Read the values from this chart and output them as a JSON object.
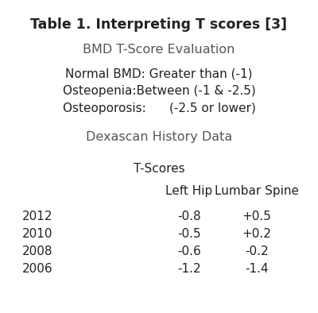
{
  "title": "Table 1. Interpreting T scores [3]",
  "bg_color": "#ffffff",
  "section1_header": "BMD T-Score Evaluation",
  "section1_lines": [
    "Normal BMD: Greater than (-1)",
    "Osteopenia:Between (-1 & -2.5)",
    "Osteoporosis:      (-2.5 or lower)"
  ],
  "section2_header": "Dexascan History Data",
  "tscores_label": "T-Scores",
  "col_headers": [
    "Left Hip",
    "Lumbar Spine"
  ],
  "years": [
    "2012",
    "2010",
    "2008",
    "2006"
  ],
  "left_hip": [
    "-0.8",
    "-0.5",
    "-0.6",
    "-1.2"
  ],
  "lumbar_spine": [
    "+0.5",
    "+0.2",
    "-0.2",
    "-1.4"
  ],
  "title_fontsize": 12.5,
  "header_fontsize": 11.5,
  "body_fontsize": 11,
  "dark_color": "#222222",
  "gray_color": "#555555",
  "fig_width": 4.0,
  "fig_height": 3.94,
  "dpi": 100
}
